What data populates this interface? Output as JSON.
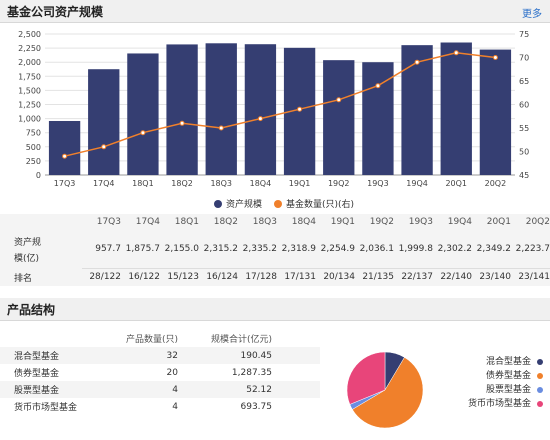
{
  "section1": {
    "title": "基金公司资产规模",
    "more": "更多"
  },
  "section2": {
    "title": "产品结构"
  },
  "chart_data": {
    "type": "bar",
    "categories": [
      "17Q3",
      "17Q4",
      "18Q1",
      "18Q2",
      "18Q3",
      "18Q4",
      "19Q1",
      "19Q2",
      "19Q3",
      "19Q4",
      "20Q1",
      "20Q2"
    ],
    "series": [
      {
        "name": "资产规模",
        "values": [
          957.7,
          1875.7,
          2155.0,
          2315.2,
          2335.2,
          2318.9,
          2254.9,
          2036.1,
          1999.8,
          2302.2,
          2349.2,
          2223.7
        ],
        "axis": "left",
        "kind": "bar"
      },
      {
        "name": "基金数量(只)(右)",
        "values": [
          49,
          51,
          54,
          56,
          55,
          57,
          59,
          61,
          64,
          69,
          71,
          70
        ],
        "axis": "right",
        "kind": "line"
      }
    ],
    "ylim_left": [
      0,
      2500
    ],
    "ylim_right": [
      45,
      75
    ],
    "left_ticks": [
      "0",
      "250",
      "500",
      "750",
      "1,000",
      "1,250",
      "1,500",
      "1,750",
      "2,000",
      "2,250",
      "2,500"
    ],
    "right_ticks": [
      "45",
      "50",
      "55",
      "60",
      "65",
      "70",
      "75"
    ],
    "grid": true,
    "legend_position": "bottom",
    "colors": {
      "bar": "#353e72",
      "line": "#f0802b"
    }
  },
  "table": {
    "columns": [
      "17Q3",
      "17Q4",
      "18Q1",
      "18Q2",
      "18Q3",
      "18Q4",
      "19Q1",
      "19Q2",
      "19Q3",
      "19Q4",
      "20Q1",
      "20Q2"
    ],
    "rows": [
      {
        "label1": "资产规",
        "label2": "模(亿)",
        "values": [
          "957.7",
          "1,875.7",
          "2,155.0",
          "2,315.2",
          "2,335.2",
          "2,318.9",
          "2,254.9",
          "2,036.1",
          "1,999.8",
          "2,302.2",
          "2,349.2",
          "2,223.7"
        ]
      },
      {
        "label1": "排名",
        "label2": "",
        "values": [
          "28/122",
          "16/122",
          "15/123",
          "16/124",
          "17/128",
          "17/131",
          "20/134",
          "21/135",
          "22/137",
          "22/140",
          "23/140",
          "23/141"
        ]
      }
    ]
  },
  "product": {
    "headers": [
      "",
      "产品数量(只)",
      "规模合计(亿元)"
    ],
    "rows": [
      {
        "name": "混合型基金",
        "count": "32",
        "scale": "190.45"
      },
      {
        "name": "债券型基金",
        "count": "20",
        "scale": "1,287.35"
      },
      {
        "name": "股票型基金",
        "count": "4",
        "scale": "52.12"
      },
      {
        "name": "货币市场型基金",
        "count": "4",
        "scale": "693.75"
      }
    ]
  },
  "pie": {
    "slices": [
      {
        "name": "混合型基金",
        "value": 190.45,
        "color": "#353e72"
      },
      {
        "name": "债券型基金",
        "value": 1287.35,
        "color": "#f0802b"
      },
      {
        "name": "股票型基金",
        "value": 52.12,
        "color": "#6a8de0"
      },
      {
        "name": "货币市场型基金",
        "value": 693.75,
        "color": "#e8457a"
      }
    ],
    "legend": [
      "混合型基金",
      "债券型基金",
      "股票型基金",
      "货币市场型基金"
    ]
  }
}
